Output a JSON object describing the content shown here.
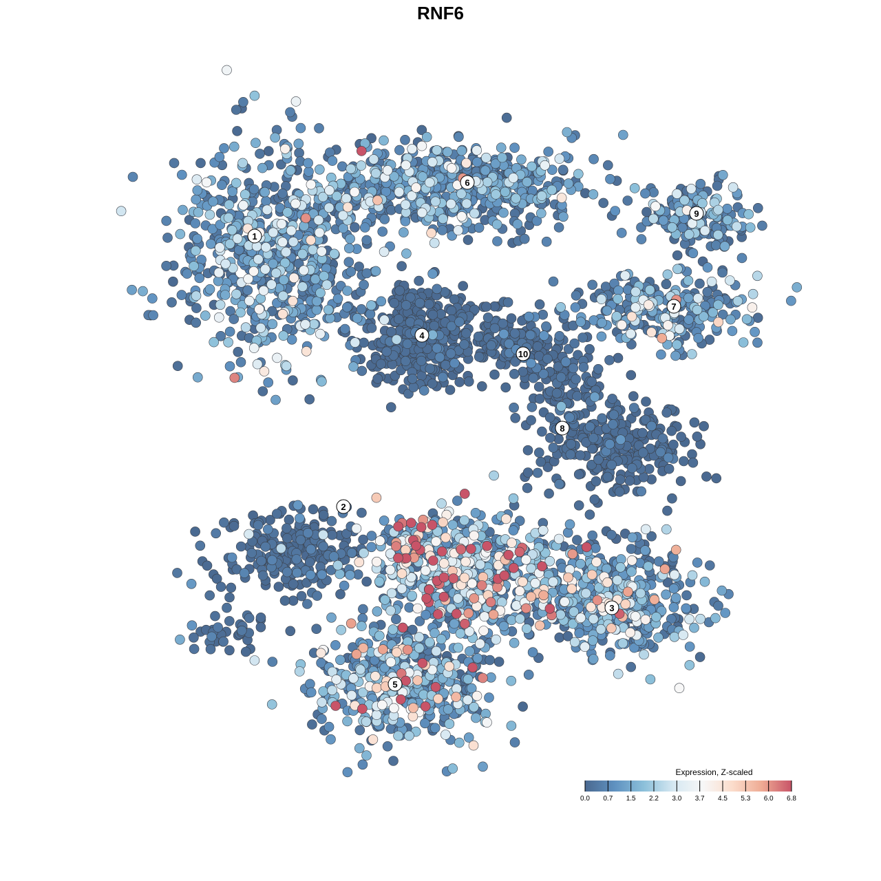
{
  "chart_data": {
    "type": "scatter",
    "title": "RNF6",
    "xlabel": "",
    "ylabel": "",
    "xlim": [
      -16,
      16
    ],
    "ylim": [
      -16,
      16
    ],
    "grid": false,
    "axes_visible": false,
    "point_color_encoding": "expression",
    "legend": {
      "title": "Expression, Z-scaled",
      "placement": "bottom-right",
      "ticks": [
        "0.0",
        "0.7",
        "1.5",
        "2.2",
        "3.0",
        "3.7",
        "4.5",
        "5.3",
        "6.0",
        "6.8"
      ],
      "range": [
        0,
        6.8
      ],
      "colors": [
        "#4a6990",
        "#5f91c0",
        "#8cc0da",
        "#d6e8f2",
        "#f7f7f7",
        "#fbdccb",
        "#eeaa93",
        "#c85468"
      ]
    },
    "cluster_labels": [
      {
        "label": "1",
        "x": -9.0,
        "y": 9.9
      },
      {
        "label": "2",
        "x": -4.7,
        "y": -3.2
      },
      {
        "label": "3",
        "x": 8.3,
        "y": -8.1
      },
      {
        "label": "4",
        "x": -0.9,
        "y": 5.1
      },
      {
        "label": "5",
        "x": -2.2,
        "y": -11.8
      },
      {
        "label": "6",
        "x": 1.3,
        "y": 12.5
      },
      {
        "label": "7",
        "x": 11.3,
        "y": 6.5
      },
      {
        "label": "8",
        "x": 5.9,
        "y": 0.6
      },
      {
        "label": "9",
        "x": 12.4,
        "y": 11.0
      },
      {
        "label": "10",
        "x": 4.0,
        "y": 4.2
      }
    ],
    "point_groups": [
      {
        "cx": -8.0,
        "cy": 9.0,
        "sx": 3.0,
        "sy": 3.2,
        "n": 650,
        "mean_expression": 1.2
      },
      {
        "cx": 0.3,
        "cy": 12.3,
        "sx": 4.3,
        "sy": 1.3,
        "n": 600,
        "mean_expression": 1.1
      },
      {
        "cx": -0.9,
        "cy": 5.0,
        "sx": 1.6,
        "sy": 1.6,
        "n": 350,
        "mean_expression": 0.3
      },
      {
        "cx": 3.8,
        "cy": 4.6,
        "sx": 1.5,
        "sy": 1.1,
        "n": 130,
        "mean_expression": 0.5
      },
      {
        "cx": 10.5,
        "cy": 6.3,
        "sx": 2.9,
        "sy": 1.1,
        "n": 260,
        "mean_expression": 1.2
      },
      {
        "cx": 12.5,
        "cy": 10.8,
        "sx": 1.5,
        "sy": 1.1,
        "n": 150,
        "mean_expression": 1.0
      },
      {
        "cx": 8.6,
        "cy": -0.4,
        "sx": 2.1,
        "sy": 1.5,
        "n": 250,
        "mean_expression": 0.3
      },
      {
        "cx": 6.2,
        "cy": 2.5,
        "sx": 1.0,
        "sy": 1.6,
        "n": 100,
        "mean_expression": 0.5
      },
      {
        "cx": -7.2,
        "cy": -5.5,
        "sx": 2.2,
        "sy": 1.4,
        "n": 220,
        "mean_expression": 0.6
      },
      {
        "cx": -10.2,
        "cy": -9.4,
        "sx": 1.2,
        "sy": 0.6,
        "n": 40,
        "mean_expression": 0.8
      },
      {
        "cx": 1.2,
        "cy": -6.4,
        "sx": 3.1,
        "sy": 1.8,
        "n": 600,
        "mean_expression": 2.0
      },
      {
        "cx": 8.3,
        "cy": -7.6,
        "sx": 2.7,
        "sy": 1.7,
        "n": 450,
        "mean_expression": 1.3
      },
      {
        "cx": -1.6,
        "cy": -11.9,
        "sx": 2.7,
        "sy": 1.7,
        "n": 450,
        "mean_expression": 1.6
      },
      {
        "cx": -1.4,
        "cy": -4.8,
        "sx": 0.9,
        "sy": 0.7,
        "n": 45,
        "mean_expression": 4.6
      }
    ]
  }
}
